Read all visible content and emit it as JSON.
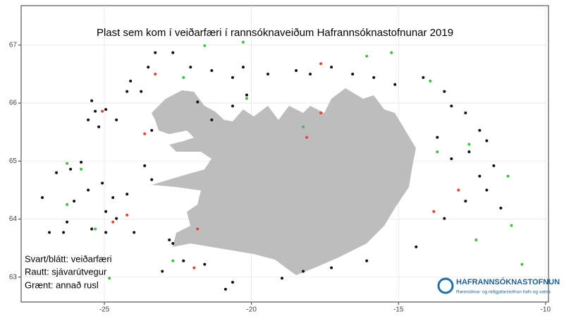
{
  "chart_data": {
    "type": "scatter",
    "title": "Plast sem kom í veiðarfæri í rannsóknaveiðum Hafrannsóknastofnunar 2019",
    "xlim": [
      -27.83,
      -9.9
    ],
    "ylim": [
      62.57,
      67.68
    ],
    "xticks": [
      -25,
      -20,
      -15,
      -10
    ],
    "yticks": [
      63,
      64,
      65,
      66,
      67
    ],
    "grid": true,
    "annotations": [
      "HAFRANNSÓKNASTOFNUN",
      "Rannsókna- og ráðgjafarstofnun hafs og vatna"
    ],
    "series": [
      {
        "name": "Svart/blátt: veiðarfæri",
        "color": "#111111",
        "x": [
          -25.43,
          -25.31,
          -24.95,
          -25.55,
          -25.19,
          -24.59,
          -25.79,
          -26.63,
          -26.15,
          -25.55,
          -26.03,
          -25.07,
          -24.71,
          -24.23,
          -24.95,
          -24.59,
          -25.43,
          -26.27,
          -24.95,
          -23.99,
          -23.39,
          -23.63,
          -23.39,
          -24.11,
          -23.75,
          -24.23,
          -23.51,
          -23.27,
          -22.67,
          -22.07,
          -21.35,
          -20.64,
          -20.28,
          -19.44,
          -18.48,
          -18.0,
          -17.28,
          -16.56,
          -15.84,
          -15.12,
          -14.16,
          -13.44,
          -13.2,
          -12.72,
          -12.24,
          -12.0,
          -11.76,
          -12.24,
          -12.0,
          -12.72,
          -11.52,
          -13.44,
          -14.4,
          -16.08,
          -17.28,
          -18.24,
          -18.96,
          -20.64,
          -20.88,
          -21.59,
          -22.31,
          -23.03,
          -22.67,
          -20.64,
          -20.16,
          -21.83,
          -21.35,
          -22.79,
          -27.11,
          -26.87,
          -26.39,
          -13.2,
          -12.6,
          -13.68
        ],
        "y": [
          66.04,
          65.86,
          65.89,
          65.71,
          65.59,
          65.71,
          64.98,
          64.8,
          64.86,
          64.5,
          64.31,
          64.62,
          64.37,
          64.43,
          64.13,
          64.01,
          63.83,
          63.95,
          63.77,
          63.77,
          64.68,
          64.92,
          65.53,
          66.38,
          66.2,
          66.2,
          66.62,
          66.87,
          66.87,
          66.62,
          66.56,
          66.44,
          66.62,
          66.5,
          66.56,
          66.5,
          66.62,
          66.5,
          66.44,
          66.32,
          66.44,
          66.2,
          65.95,
          65.83,
          65.53,
          65.35,
          64.92,
          64.74,
          64.5,
          64.31,
          64.19,
          64.01,
          63.52,
          63.28,
          63.16,
          63.1,
          62.98,
          62.91,
          62.79,
          63.22,
          63.28,
          63.1,
          63.58,
          65.95,
          66.14,
          66.02,
          65.71,
          63.64,
          64.37,
          63.77,
          63.77,
          65.04,
          65.16,
          65.41
        ]
      },
      {
        "name": "Rautt: sjávarútvegur",
        "color": "#e8412c",
        "x": [
          -25.07,
          -23.63,
          -23.27,
          -24.71,
          -21.83,
          -21.95,
          -17.64,
          -17.64,
          -12.96,
          -13.8,
          -18.12,
          -24.23
        ],
        "y": [
          65.86,
          65.47,
          66.5,
          63.95,
          63.83,
          63.16,
          65.83,
          66.68,
          64.5,
          64.13,
          65.41,
          64.07
        ]
      },
      {
        "name": "Grænt: annað rusl",
        "color": "#3cc43c",
        "x": [
          -26.27,
          -25.79,
          -26.27,
          -21.59,
          -20.28,
          -16.08,
          -15.24,
          -13.92,
          -20.16,
          -13.68,
          -12.6,
          -11.28,
          -11.16,
          -12.36,
          -10.8,
          -24.83,
          -22.67,
          -18.24,
          -25.31,
          -22.31
        ],
        "y": [
          64.96,
          64.86,
          64.25,
          66.99,
          67.05,
          66.81,
          66.87,
          66.38,
          66.08,
          65.16,
          65.29,
          64.74,
          63.89,
          63.64,
          63.22,
          62.98,
          63.28,
          65.59,
          63.83,
          66.44
        ]
      }
    ]
  }
}
